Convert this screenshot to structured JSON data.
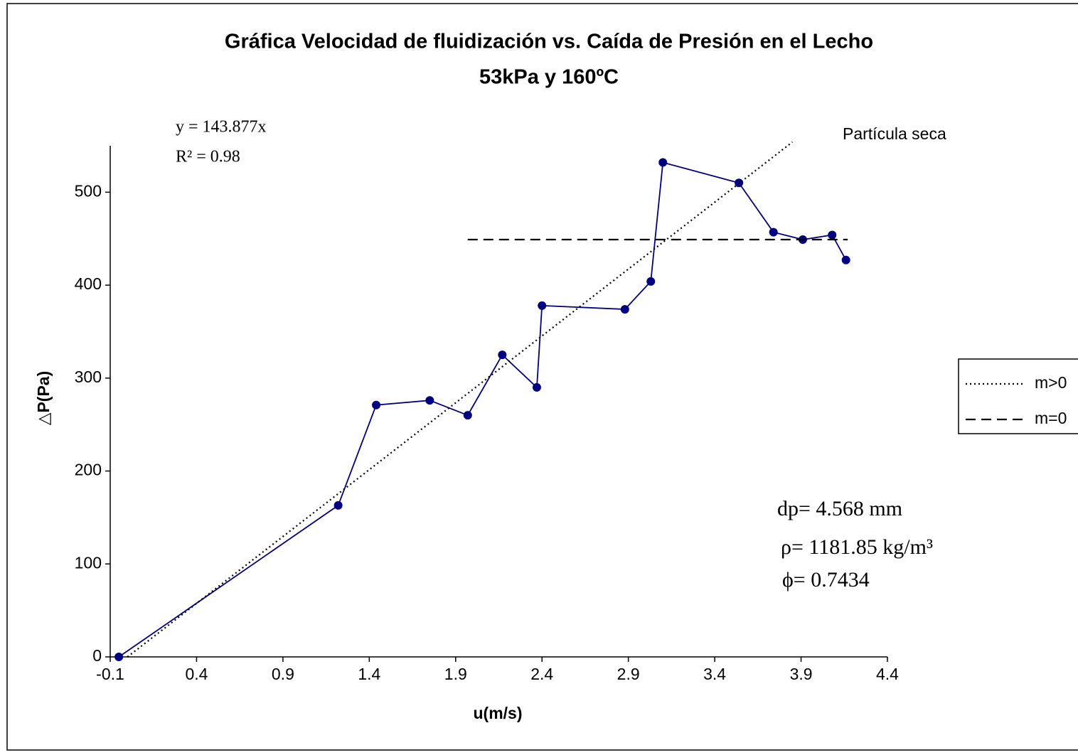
{
  "chart_data": {
    "type": "line",
    "title": "Gráfica Velocidad de fluidización vs. Caída de Presión en el Lecho",
    "subtitle": "53kPa y 160ºC",
    "x_label": "u(m/s)",
    "y_label": "△P(Pa)",
    "xlim": [
      -0.1,
      4.4
    ],
    "xticks": [
      -0.1,
      0.4,
      0.9,
      1.4,
      1.9,
      2.4,
      2.9,
      3.4,
      3.9,
      4.4
    ],
    "ylim": [
      0,
      550
    ],
    "yticks": [
      0,
      100,
      200,
      300,
      400,
      500
    ],
    "series": [
      {
        "color": "#000080",
        "marker": true,
        "dash": "solid",
        "x": [
          -0.05,
          1.22,
          1.44,
          1.75,
          1.97,
          2.17,
          2.37,
          2.4,
          2.88,
          3.03,
          3.1,
          3.54,
          3.74,
          3.91,
          4.08,
          4.16
        ],
        "values": [
          0,
          163,
          271,
          276,
          260,
          325,
          290,
          378,
          374,
          404,
          532,
          510,
          457,
          449,
          454,
          427
        ]
      },
      {
        "name": "m>0",
        "color": "#000000",
        "marker": false,
        "dash": "dotted",
        "x": [
          0,
          3.85
        ],
        "values": [
          0,
          554
        ]
      },
      {
        "name": "m=0",
        "color": "#000000",
        "marker": false,
        "dash": "dashed",
        "x": [
          1.97,
          4.17
        ],
        "values": [
          449,
          449
        ]
      }
    ],
    "annotations": [
      "y = 143.877x",
      "R² = 0.98",
      "Partícula seca",
      "dp= 4.568 mm",
      "ρ= 1181.85 kg/m³",
      "ϕ= 0.7434"
    ]
  }
}
